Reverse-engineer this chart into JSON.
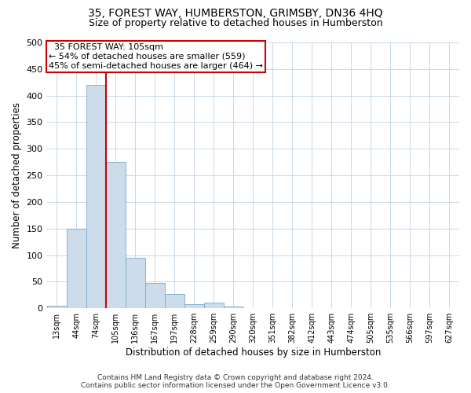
{
  "title": "35, FOREST WAY, HUMBERSTON, GRIMSBY, DN36 4HQ",
  "subtitle": "Size of property relative to detached houses in Humberston",
  "xlabel": "Distribution of detached houses by size in Humberston",
  "ylabel": "Number of detached properties",
  "footer_line1": "Contains HM Land Registry data © Crown copyright and database right 2024.",
  "footer_line2": "Contains public sector information licensed under the Open Government Licence v3.0.",
  "bin_labels": [
    "13sqm",
    "44sqm",
    "74sqm",
    "105sqm",
    "136sqm",
    "167sqm",
    "197sqm",
    "228sqm",
    "259sqm",
    "290sqm",
    "320sqm",
    "351sqm",
    "382sqm",
    "412sqm",
    "443sqm",
    "474sqm",
    "505sqm",
    "535sqm",
    "566sqm",
    "597sqm",
    "627sqm"
  ],
  "bar_values": [
    5,
    150,
    420,
    275,
    95,
    48,
    27,
    7,
    10,
    3,
    1,
    0,
    0,
    0,
    0,
    0,
    0,
    0,
    0,
    0,
    0
  ],
  "bar_color": "#cddceb",
  "bar_edgecolor": "#7aaac8",
  "property_line_x": 2.5,
  "property_line_label": "35 FOREST WAY: 105sqm",
  "annotation_line1": "← 54% of detached houses are smaller (559)",
  "annotation_line2": "45% of semi-detached houses are larger (464) →",
  "annotation_box_color": "#ffffff",
  "annotation_box_edgecolor": "#cc0000",
  "vline_color": "#cc0000",
  "ylim": [
    0,
    500
  ],
  "yticks": [
    0,
    50,
    100,
    150,
    200,
    250,
    300,
    350,
    400,
    450,
    500
  ],
  "background_color": "#ffffff",
  "grid_color": "#c8d8e8",
  "title_fontsize": 10,
  "subtitle_fontsize": 9,
  "axis_fontsize": 8.5,
  "tick_fontsize": 8,
  "footer_fontsize": 6.5
}
